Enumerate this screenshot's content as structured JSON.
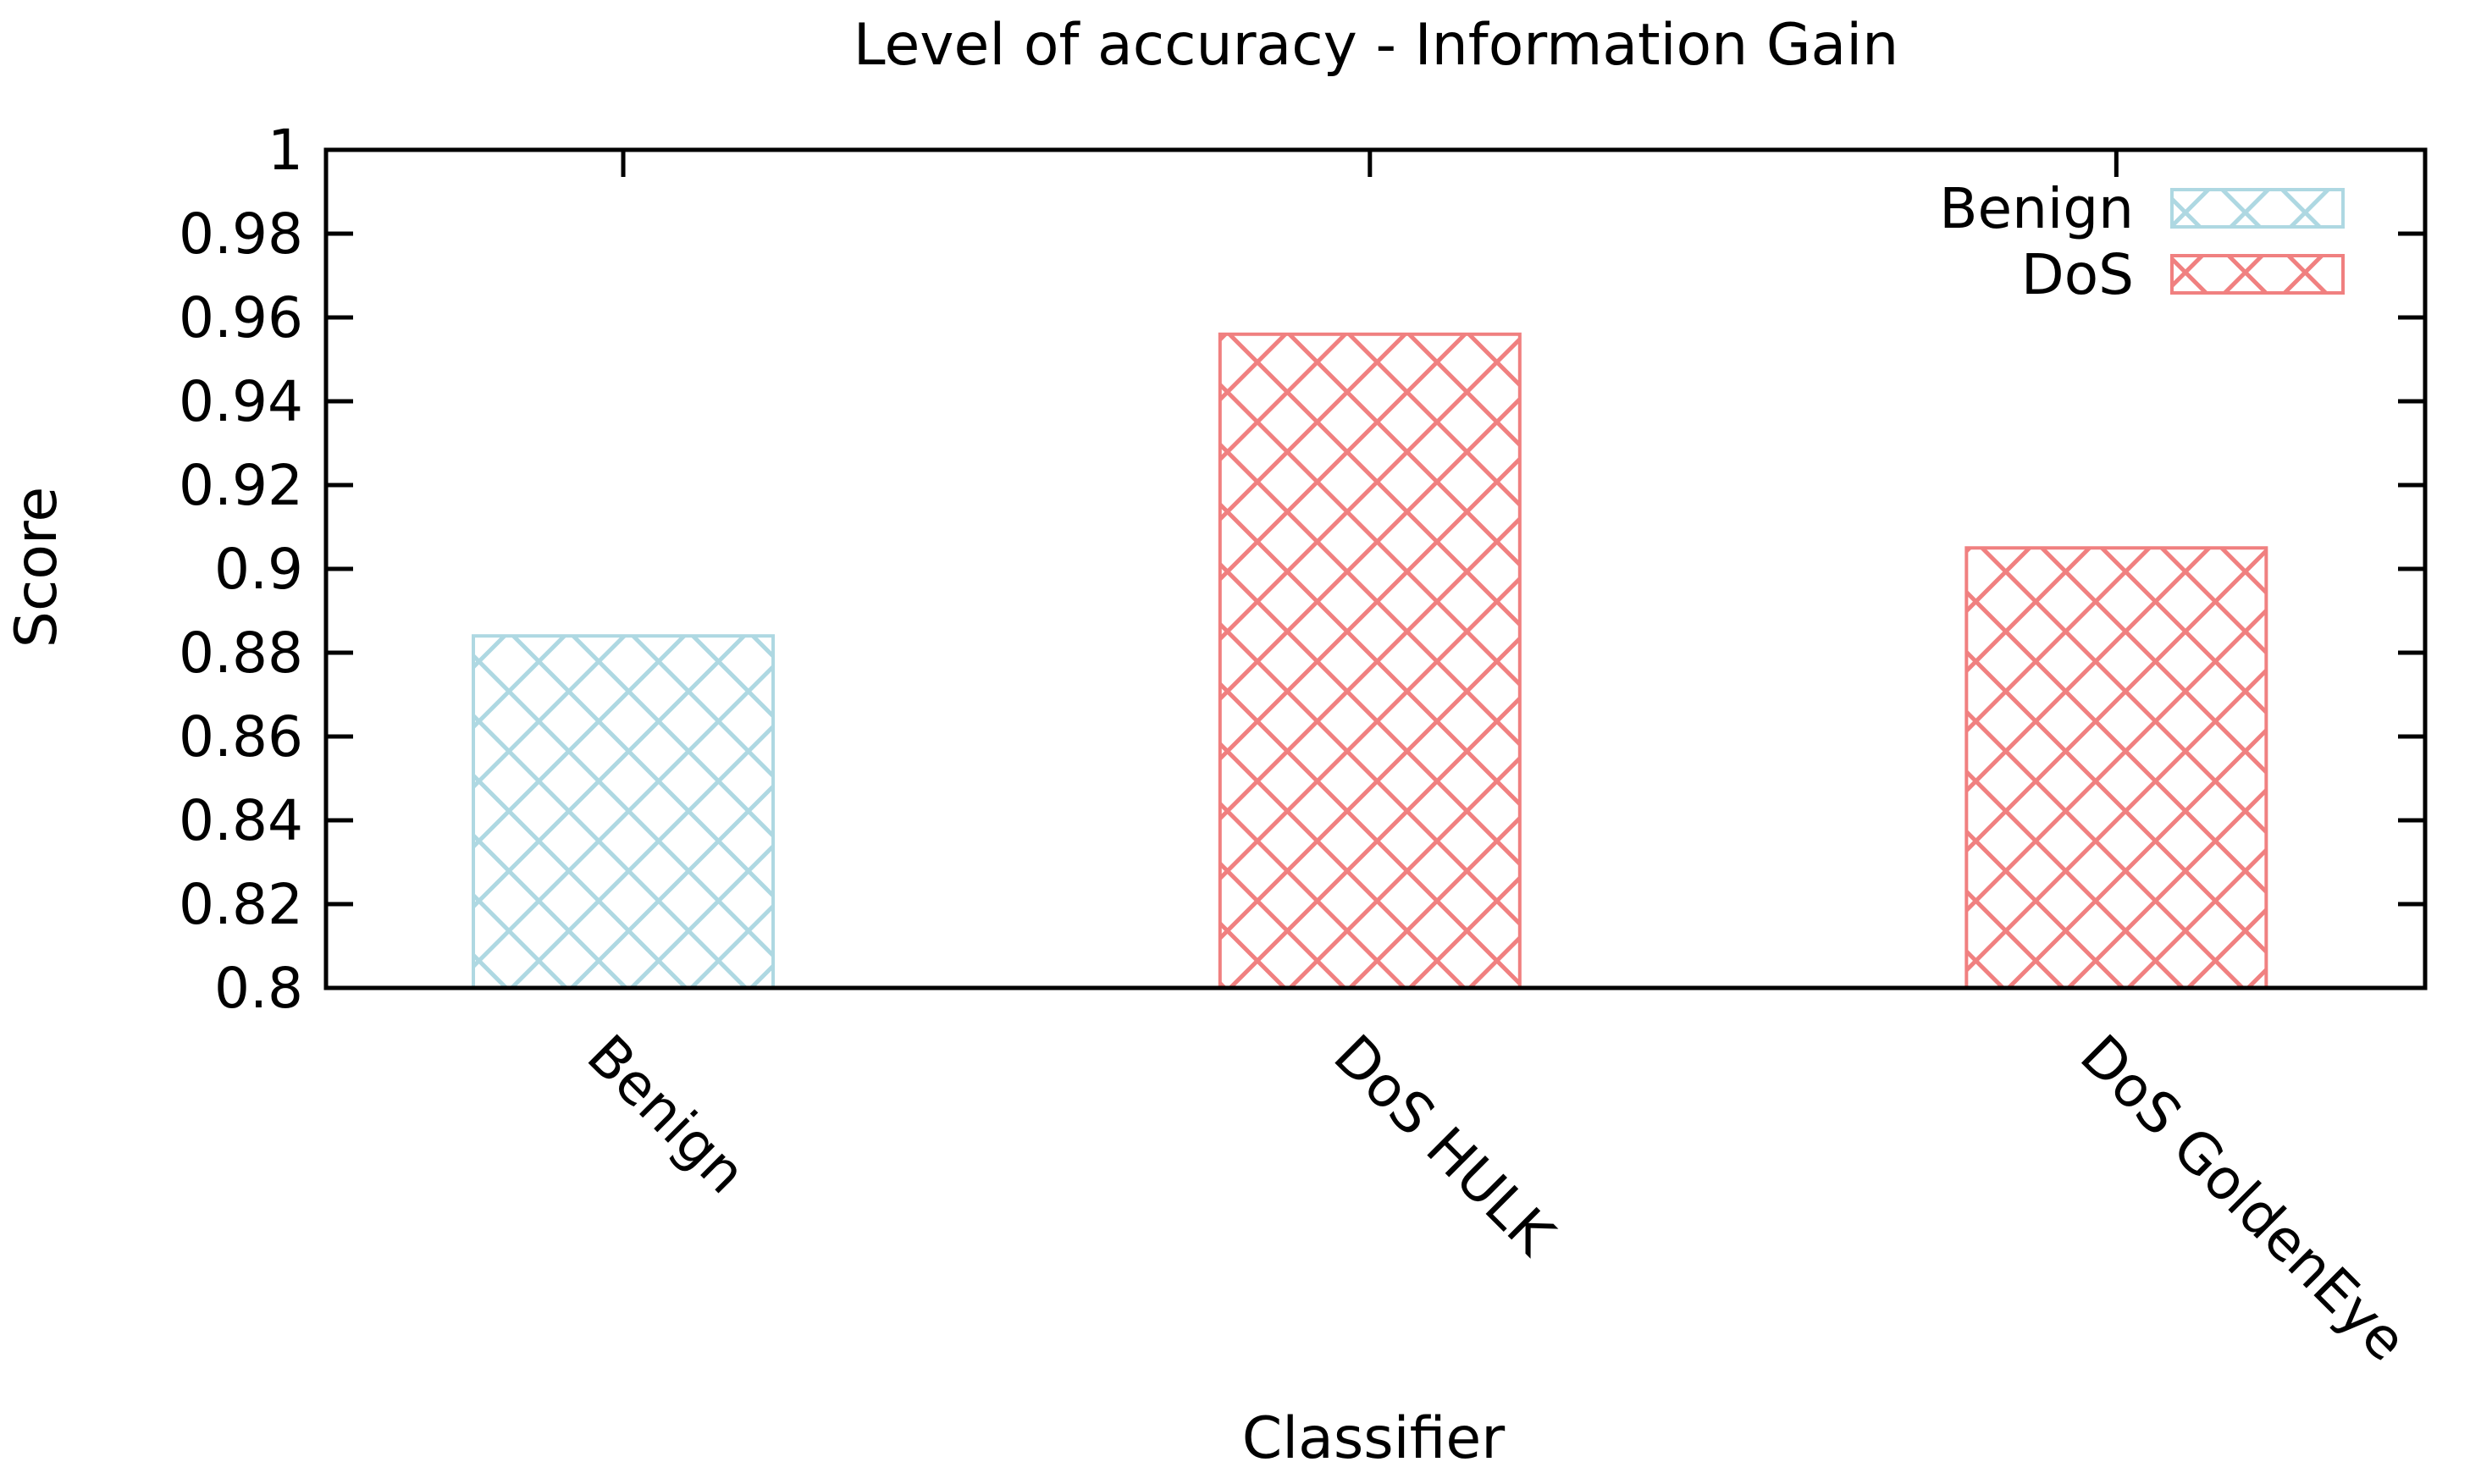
{
  "page": {
    "background": "#ffffff"
  },
  "chart_data": {
    "type": "bar",
    "title": "Level of accuracy - Information Gain",
    "xlabel": "Classifier",
    "ylabel": "Score",
    "ylim": [
      0.8,
      1
    ],
    "ytick_step": 0.02,
    "yticks": [
      {
        "value": 1.0,
        "label": "1"
      },
      {
        "value": 0.98,
        "label": "0.98"
      },
      {
        "value": 0.96,
        "label": "0.96"
      },
      {
        "value": 0.94,
        "label": "0.94"
      },
      {
        "value": 0.92,
        "label": "0.92"
      },
      {
        "value": 0.9,
        "label": "0.9"
      },
      {
        "value": 0.88,
        "label": "0.88"
      },
      {
        "value": 0.86,
        "label": "0.86"
      },
      {
        "value": 0.84,
        "label": "0.84"
      },
      {
        "value": 0.82,
        "label": "0.82"
      },
      {
        "value": 0.8,
        "label": "0.8"
      }
    ],
    "categories": [
      "Benign",
      "DoS HULK",
      "DoS GoldenEye"
    ],
    "bars": [
      {
        "category": "Benign",
        "series": "Benign",
        "value": 0.884
      },
      {
        "category": "DoS HULK",
        "series": "DoS",
        "value": 0.956
      },
      {
        "category": "DoS GoldenEye",
        "series": "DoS",
        "value": 0.905
      }
    ],
    "series": [
      {
        "name": "Benign",
        "color": "#aed8e2",
        "values": [
          0.884
        ]
      },
      {
        "name": "DoS",
        "color": "#f08080",
        "values": [
          0.956,
          0.905
        ]
      }
    ],
    "legend": {
      "position": "top-right",
      "entries": [
        {
          "label": "Benign",
          "color": "#aed8e2"
        },
        {
          "label": "DoS",
          "color": "#f08080"
        }
      ]
    },
    "grid": false,
    "fill_style": "crosshatch",
    "axis_color": "#000000"
  }
}
